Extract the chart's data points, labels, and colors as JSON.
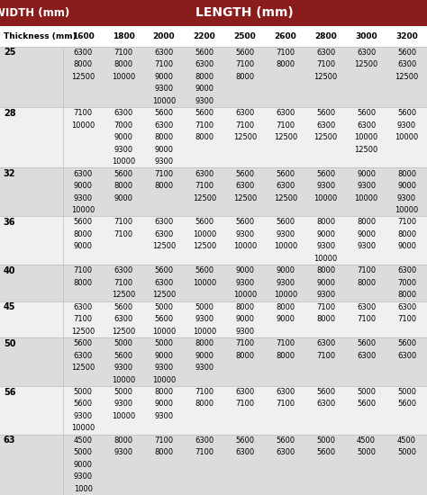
{
  "title_left": "WIDTH (mm)",
  "title_right": "LENGTH (mm)",
  "col_headers": [
    "Thickness (mm)",
    "1600",
    "1800",
    "2000",
    "2200",
    "2500",
    "2600",
    "2800",
    "3000",
    "3200"
  ],
  "header_bg": "#8B1C1C",
  "header_fg": "#FFFFFF",
  "subheader_bg": "#FFFFFF",
  "row_bg_light": "#F0F0F0",
  "row_bg_dark": "#DCDCDC",
  "rows": [
    {
      "thickness": "25",
      "data": [
        [
          "6300",
          "7100",
          "6300",
          "5600",
          "5600",
          "7100",
          "6300",
          "6300",
          "5600"
        ],
        [
          "8000",
          "8000",
          "7100",
          "6300",
          "7100",
          "8000",
          "7100",
          "12500",
          "6300"
        ],
        [
          "12500",
          "10000",
          "9000",
          "8000",
          "8000",
          "",
          "12500",
          "",
          "12500"
        ],
        [
          "",
          "",
          "9300",
          "9000",
          "",
          "",
          "",
          "",
          ""
        ],
        [
          "",
          "",
          "10000",
          "9300",
          "",
          "",
          "",
          "",
          ""
        ]
      ]
    },
    {
      "thickness": "28",
      "data": [
        [
          "7100",
          "6300",
          "5600",
          "5600",
          "6300",
          "6300",
          "5600",
          "5600",
          "5600"
        ],
        [
          "10000",
          "7000",
          "6300",
          "7100",
          "7100",
          "7100",
          "6300",
          "6300",
          "9300"
        ],
        [
          "",
          "9000",
          "8000",
          "8000",
          "12500",
          "12500",
          "12500",
          "10000",
          "10000"
        ],
        [
          "",
          "9300",
          "9000",
          "",
          "",
          "",
          "",
          "12500",
          ""
        ],
        [
          "",
          "10000",
          "9300",
          "",
          "",
          "",
          "",
          "",
          ""
        ]
      ]
    },
    {
      "thickness": "32",
      "data": [
        [
          "6300",
          "5600",
          "7100",
          "6300",
          "5600",
          "5600",
          "5600",
          "9000",
          "8000"
        ],
        [
          "9000",
          "8000",
          "8000",
          "7100",
          "6300",
          "6300",
          "9300",
          "9300",
          "9000"
        ],
        [
          "9300",
          "9000",
          "",
          "12500",
          "12500",
          "12500",
          "10000",
          "10000",
          "9300"
        ],
        [
          "10000",
          "",
          "",
          "",
          "",
          "",
          "",
          "",
          "10000"
        ]
      ]
    },
    {
      "thickness": "36",
      "data": [
        [
          "5600",
          "7100",
          "6300",
          "5600",
          "5600",
          "5600",
          "8000",
          "8000",
          "7100"
        ],
        [
          "8000",
          "7100",
          "6300",
          "10000",
          "9300",
          "9300",
          "9000",
          "9000",
          "8000"
        ],
        [
          "9000",
          "",
          "12500",
          "12500",
          "10000",
          "10000",
          "9300",
          "9300",
          "9000"
        ],
        [
          "",
          "",
          "",
          "",
          "",
          "",
          "10000",
          "",
          ""
        ]
      ]
    },
    {
      "thickness": "40",
      "data": [
        [
          "7100",
          "6300",
          "5600",
          "5600",
          "9000",
          "9000",
          "8000",
          "7100",
          "6300"
        ],
        [
          "8000",
          "7100",
          "6300",
          "10000",
          "9300",
          "9300",
          "9000",
          "8000",
          "7000"
        ],
        [
          "",
          "12500",
          "12500",
          "",
          "10000",
          "10000",
          "9300",
          "",
          "8000"
        ]
      ]
    },
    {
      "thickness": "45",
      "data": [
        [
          "6300",
          "5600",
          "5000",
          "5000",
          "8000",
          "8000",
          "7100",
          "6300",
          "6300"
        ],
        [
          "7100",
          "6300",
          "5600",
          "9300",
          "9000",
          "9000",
          "8000",
          "7100",
          "7100"
        ],
        [
          "12500",
          "12500",
          "10000",
          "10000",
          "9300",
          "",
          "",
          "",
          ""
        ]
      ]
    },
    {
      "thickness": "50",
      "data": [
        [
          "5600",
          "5000",
          "5000",
          "8000",
          "7100",
          "7100",
          "6300",
          "5600",
          "5600"
        ],
        [
          "6300",
          "5600",
          "9000",
          "9000",
          "8000",
          "8000",
          "7100",
          "6300",
          "6300"
        ],
        [
          "12500",
          "9300",
          "9300",
          "9300",
          "",
          "",
          "",
          "",
          ""
        ],
        [
          "",
          "10000",
          "10000",
          "",
          "",
          "",
          "",
          "",
          ""
        ]
      ]
    },
    {
      "thickness": "56",
      "data": [
        [
          "5000",
          "5000",
          "8000",
          "7100",
          "6300",
          "6300",
          "5600",
          "5000",
          "5000"
        ],
        [
          "5600",
          "9300",
          "9000",
          "8000",
          "7100",
          "7100",
          "6300",
          "5600",
          "5600"
        ],
        [
          "9300",
          "10000",
          "9300",
          "",
          "",
          "",
          "",
          "",
          ""
        ],
        [
          "10000",
          "",
          "",
          "",
          "",
          "",
          "",
          "",
          ""
        ]
      ]
    },
    {
      "thickness": "63",
      "data": [
        [
          "4500",
          "8000",
          "7100",
          "6300",
          "5600",
          "5600",
          "5000",
          "4500",
          "4500"
        ],
        [
          "5000",
          "9300",
          "8000",
          "7100",
          "6300",
          "6300",
          "5600",
          "5000",
          "5000"
        ],
        [
          "9000",
          "",
          "",
          "",
          "",
          "",
          "",
          "",
          ""
        ],
        [
          "9300",
          "",
          "",
          "",
          "",
          "",
          "",
          "",
          ""
        ],
        [
          "1000",
          "",
          "",
          "",
          "",
          "",
          "",
          "",
          ""
        ]
      ]
    }
  ]
}
